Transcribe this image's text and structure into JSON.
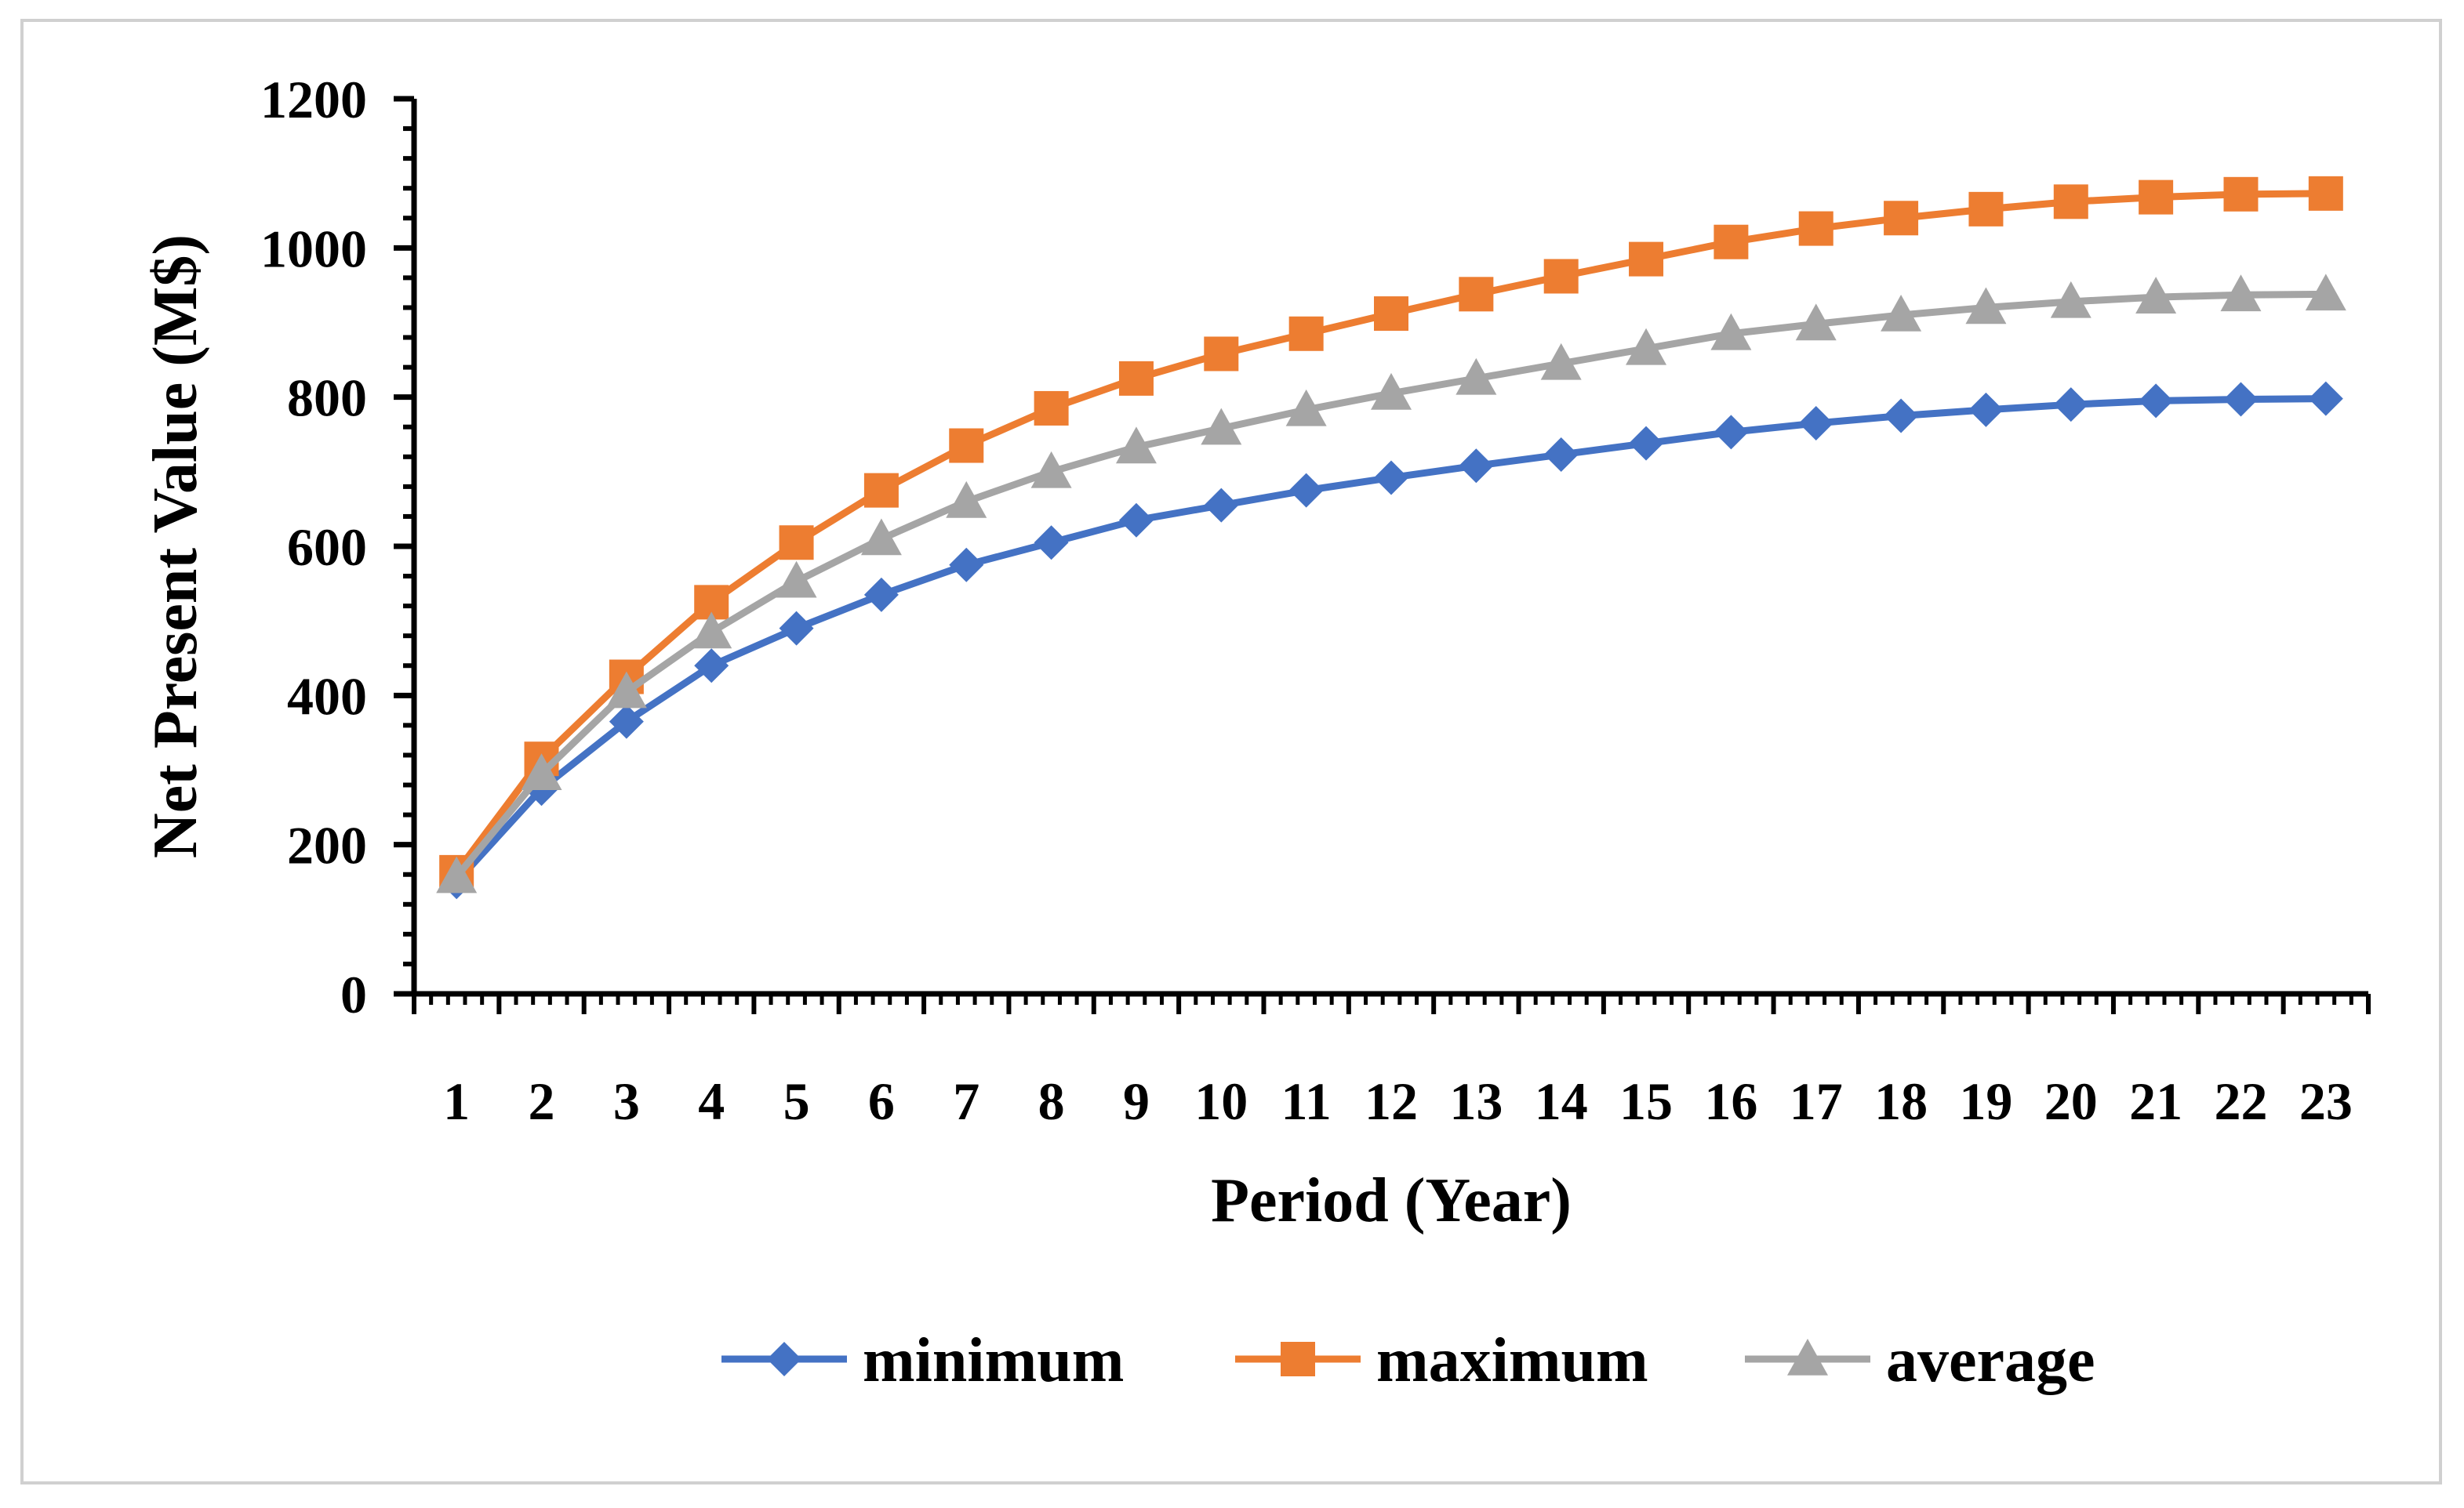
{
  "chart_data": {
    "type": "line",
    "title": "",
    "xlabel": "Period (Year)",
    "ylabel": "Net Present Value (M$)",
    "ylim": [
      0,
      1200
    ],
    "yticks": [
      0,
      200,
      400,
      600,
      800,
      1000,
      1200
    ],
    "categories": [
      "1",
      "2",
      "3",
      "4",
      "5",
      "6",
      "7",
      "8",
      "9",
      "10",
      "11",
      "12",
      "13",
      "14",
      "15",
      "16",
      "17",
      "18",
      "19",
      "20",
      "21",
      "22",
      "23"
    ],
    "tick_labels": [
      "1",
      "2",
      "3",
      "4",
      "5",
      "6",
      "7",
      "8",
      "9",
      "10",
      "11",
      "12",
      "13",
      "14",
      "15",
      "16",
      "17",
      "18",
      "19",
      "20",
      "21",
      "22",
      "23"
    ],
    "legend_position": "bottom",
    "grid": false,
    "series": [
      {
        "name": "minimum",
        "color": "#4472C4",
        "marker": "diamond",
        "values": [
          150,
          275,
          365,
          440,
          490,
          535,
          575,
          605,
          635,
          655,
          675,
          692,
          708,
          723,
          738,
          753,
          765,
          775,
          783,
          790,
          795,
          797,
          798
        ]
      },
      {
        "name": "maximum",
        "color": "#ED7D31",
        "marker": "square",
        "values": [
          163,
          315,
          425,
          525,
          605,
          675,
          735,
          785,
          825,
          858,
          885,
          912,
          938,
          962,
          985,
          1008,
          1026,
          1040,
          1052,
          1062,
          1068,
          1072,
          1073
        ]
      },
      {
        "name": "average",
        "color": "#A5A5A5",
        "marker": "triangle",
        "values": [
          157,
          295,
          405,
          485,
          553,
          610,
          660,
          700,
          733,
          758,
          783,
          805,
          825,
          845,
          865,
          885,
          898,
          910,
          920,
          928,
          934,
          937,
          938
        ]
      }
    ]
  }
}
